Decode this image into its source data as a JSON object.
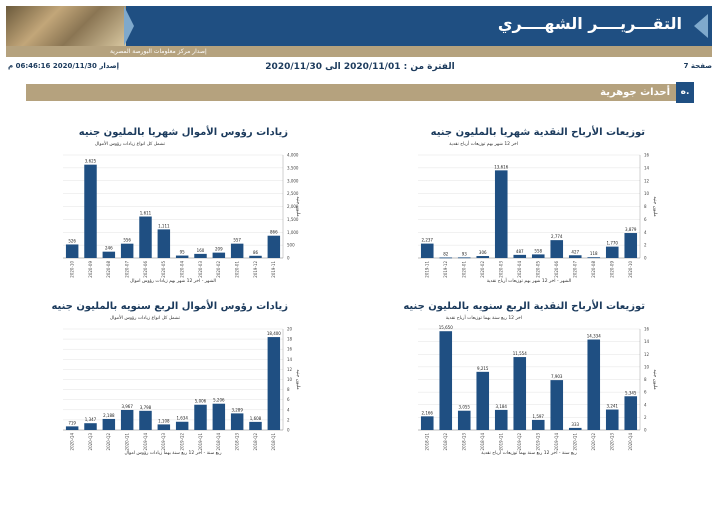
{
  "header": {
    "title": "التقـــريــــر الشهــــري",
    "subtitle": "إصدار مركز معلومات البورصة المصرية",
    "page_label": "صفحة 7",
    "period": "الفترة من : 2020/11/01 الى 2020/11/30",
    "issue": "إصدار 2020/11/30 06:46:16 م"
  },
  "section": {
    "number": "ه.",
    "title": "أحداث جوهرية"
  },
  "colors": {
    "bar": "#1f4f82",
    "banner": "#1f4f82",
    "tan": "#b5a27e"
  },
  "chart_data": [
    {
      "id": "cash-dividends-monthly",
      "type": "bar",
      "title": "توزيعات الأرباح النقدية شهريا بالمليون جنيه",
      "subtitle": "اخر 12 شهر بهم توزيعات أرباح نقدية",
      "xlabel": "الشهر - اخر 12 شهر بهم توزيعات أرباح نقدية",
      "ylabel": "مليون جنيه",
      "yticks": [
        "0",
        "2",
        "4",
        "6",
        "8",
        "10",
        "12",
        "14",
        "16"
      ],
      "ylim": [
        0,
        16000
      ],
      "categories": [
        "2019-11",
        "2019-12",
        "2020-01",
        "2020-02",
        "2020-03",
        "2020-04",
        "2020-05",
        "2020-06",
        "2020-07",
        "2020-08",
        "2020-09",
        "2020-10"
      ],
      "values": [
        2237,
        82,
        93,
        306,
        13616,
        487,
        558,
        2774,
        427,
        118,
        1770,
        3879
      ],
      "labels": [
        "2,237",
        "82",
        "93",
        "306",
        "13,616",
        "487",
        "558",
        "2,774",
        "427",
        "118",
        "1,770",
        "3,879"
      ]
    },
    {
      "id": "capital-increases-monthly",
      "type": "bar",
      "title": "زيادات رؤوس الأموال شهريا بالمليون جنيه",
      "subtitle": "تشمل كل انواع زيادات رؤوس الأموال",
      "xlabel": "الشهر - اخر 12 شهر بهم زيادات رؤوس اموال",
      "ylabel": "مليون جنيه",
      "yticks": [
        "0",
        "500",
        "1,000",
        "1,500",
        "2,000",
        "2,500",
        "3,000",
        "3,500",
        "4,000"
      ],
      "ylim": [
        0,
        4000
      ],
      "categories": [
        "2020-10",
        "2020-09",
        "2020-08",
        "2020-07",
        "2020-06",
        "2020-05",
        "2020-04",
        "2020-03",
        "2020-02",
        "2020-01",
        "2019-12",
        "2019-11"
      ],
      "values": [
        526,
        3625,
        246,
        556,
        1611,
        1111,
        95,
        160,
        209,
        557,
        86,
        866
      ],
      "labels": [
        "526",
        "3,625",
        "246",
        "556",
        "1,611",
        "1,111",
        "95",
        "160",
        "209",
        "557",
        "86",
        "866"
      ]
    },
    {
      "id": "cash-dividends-quarterly",
      "type": "bar",
      "title": "توزيعات الأرباح النقدية الربع سنويه بالمليون جنيه",
      "subtitle": "اخر 12 ربع سنة بهما توزيعات أرباح نقدية",
      "xlabel": "ربع سنة - اخر 12 ربع سنة بهما توزيعات أرباح نقدية",
      "ylabel": "مليون جنيه",
      "yticks": [
        "0",
        "2",
        "4",
        "6",
        "8",
        "10",
        "12",
        "14",
        "16"
      ],
      "ylim": [
        0,
        16000
      ],
      "categories": [
        "2018-Q1",
        "2018-Q2",
        "2018-Q3",
        "2018-Q4",
        "2019-Q1",
        "2019-Q2",
        "2019-Q3",
        "2019-Q4",
        "2020-Q1",
        "2020-Q2",
        "2020-Q3",
        "2020-Q4"
      ],
      "values": [
        2166,
        15650,
        3055,
        9215,
        3184,
        11554,
        1597,
        7903,
        333,
        14334,
        3241,
        5345
      ],
      "labels": [
        "2,166",
        "15,650",
        "3,055",
        "9,215",
        "3,184",
        "11,554",
        "1,597",
        "7,903",
        "333",
        "14,334",
        "3,241",
        "5,345"
      ]
    },
    {
      "id": "capital-increases-quarterly",
      "type": "bar",
      "title": "زيادات رؤوس الأموال الربع سنويه بالمليون جنيه",
      "subtitle": "تشمل كل انواع زيادات رؤوس الأموال",
      "xlabel": "ربع سنة - اخر 12 ربع سنة بهما زيادات رؤوس اموال",
      "ylabel": "مليون جنيه",
      "yticks": [
        "0",
        "2",
        "4",
        "6",
        "8",
        "10",
        "12",
        "14",
        "16",
        "18",
        "20"
      ],
      "ylim": [
        0,
        20000
      ],
      "categories": [
        "2020-Q4",
        "2020-Q3",
        "2020-Q2",
        "2020-Q1",
        "2019-Q4",
        "2019-Q3",
        "2019-Q2",
        "2019-Q1",
        "2018-Q4",
        "2018-Q3",
        "2018-Q2",
        "2018-Q1"
      ],
      "values": [
        719,
        1347,
        2188,
        3967,
        3798,
        1108,
        1634,
        5006,
        5206,
        3289,
        1608,
        18400
      ],
      "labels": [
        "719",
        "1,347",
        "2,188",
        "3,967",
        "3,798",
        "1,108",
        "1,634",
        "5,006",
        "5,206",
        "3,289",
        "1,608",
        "18,400"
      ]
    }
  ]
}
